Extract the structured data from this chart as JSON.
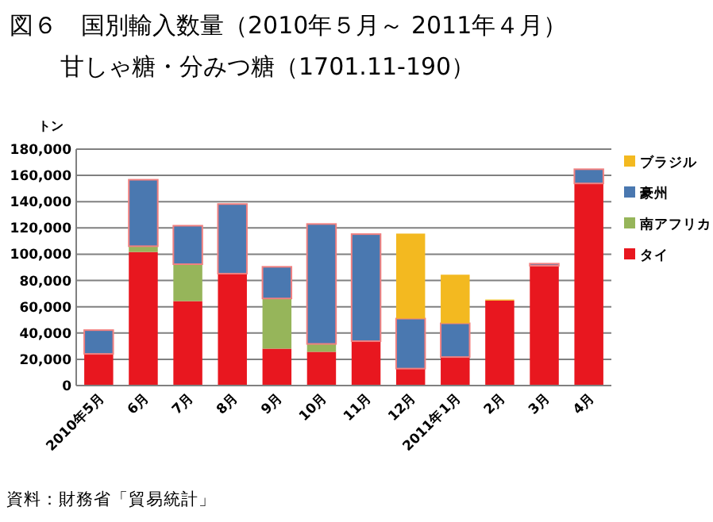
{
  "chart_data": {
    "type": "bar",
    "stacked": true,
    "title": "図６　国別輸入数量（2010年５月～ 2011年４月）",
    "subtitle": "甘しゃ糖・分みつ糖（1701.11-190）",
    "ylabel": "トン",
    "annotations": [
      "資料：財務省「貿易統計」"
    ],
    "categories": [
      "2010年5月",
      "6月",
      "7月",
      "8月",
      "9月",
      "10月",
      "11月",
      "12月",
      "2011年1月",
      "2月",
      "3月",
      "4月"
    ],
    "series": [
      {
        "name": "タイ",
        "color": "#e8171f",
        "values": [
          24100,
          101700,
          64300,
          85200,
          28100,
          25700,
          33800,
          12900,
          21700,
          64700,
          91200,
          153900
        ]
      },
      {
        "name": "南アフリカ",
        "color": "#96b55a",
        "values": [
          null,
          4400,
          28100,
          null,
          38200,
          6000,
          null,
          null,
          null,
          null,
          null,
          null
        ]
      },
      {
        "name": "豪州",
        "color": "#4a78b0",
        "values": [
          18100,
          50600,
          29300,
          53000,
          24100,
          91300,
          81500,
          38100,
          25700,
          null,
          1600,
          10800
        ]
      },
      {
        "name": "ブラジル",
        "color": "#f3b920",
        "values": [
          null,
          null,
          null,
          null,
          null,
          null,
          null,
          64700,
          37000,
          800,
          null,
          null
        ]
      }
    ],
    "ylim": [
      0,
      180000
    ],
    "yticks": [
      {
        "value": 0,
        "label": "0"
      },
      {
        "value": 20000,
        "label": "20,000"
      },
      {
        "value": 40000,
        "label": "40,000"
      },
      {
        "value": 60000,
        "label": "60,000"
      },
      {
        "value": 80000,
        "label": "80,000"
      },
      {
        "value": 100000,
        "label": "100,000"
      },
      {
        "value": 120000,
        "label": "120,000"
      },
      {
        "value": 140000,
        "label": "140,000"
      },
      {
        "value": 160000,
        "label": "160,000"
      },
      {
        "value": 180000,
        "label": "180,000"
      }
    ],
    "grid": "y",
    "legend": "right"
  }
}
